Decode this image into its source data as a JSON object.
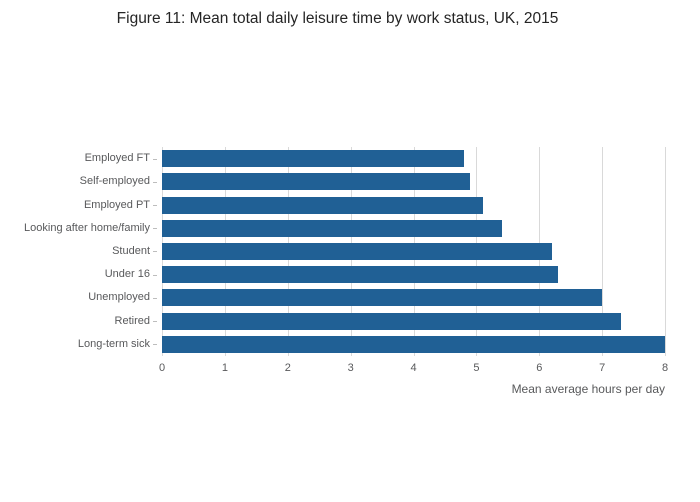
{
  "chart_data": {
    "type": "bar",
    "orientation": "horizontal",
    "title": "Figure 11: Mean total daily leisure time by work status, UK, 2015",
    "xlabel": "Mean average hours per day",
    "ylabel": "",
    "categories": [
      "Employed FT",
      "Self-employed",
      "Employed PT",
      "Looking after home/family",
      "Student",
      "Under 16",
      "Unemployed",
      "Retired",
      "Long-term sick"
    ],
    "values": [
      4.8,
      4.9,
      5.1,
      5.4,
      6.2,
      6.3,
      7.0,
      7.3,
      8.0
    ],
    "xlim": [
      0,
      8
    ],
    "xticks": [
      0,
      1,
      2,
      3,
      4,
      5,
      6,
      7,
      8
    ],
    "grid": "vertical",
    "legend": "none",
    "bar_color": "#206095",
    "gridline_color": "#d9d9d9"
  }
}
